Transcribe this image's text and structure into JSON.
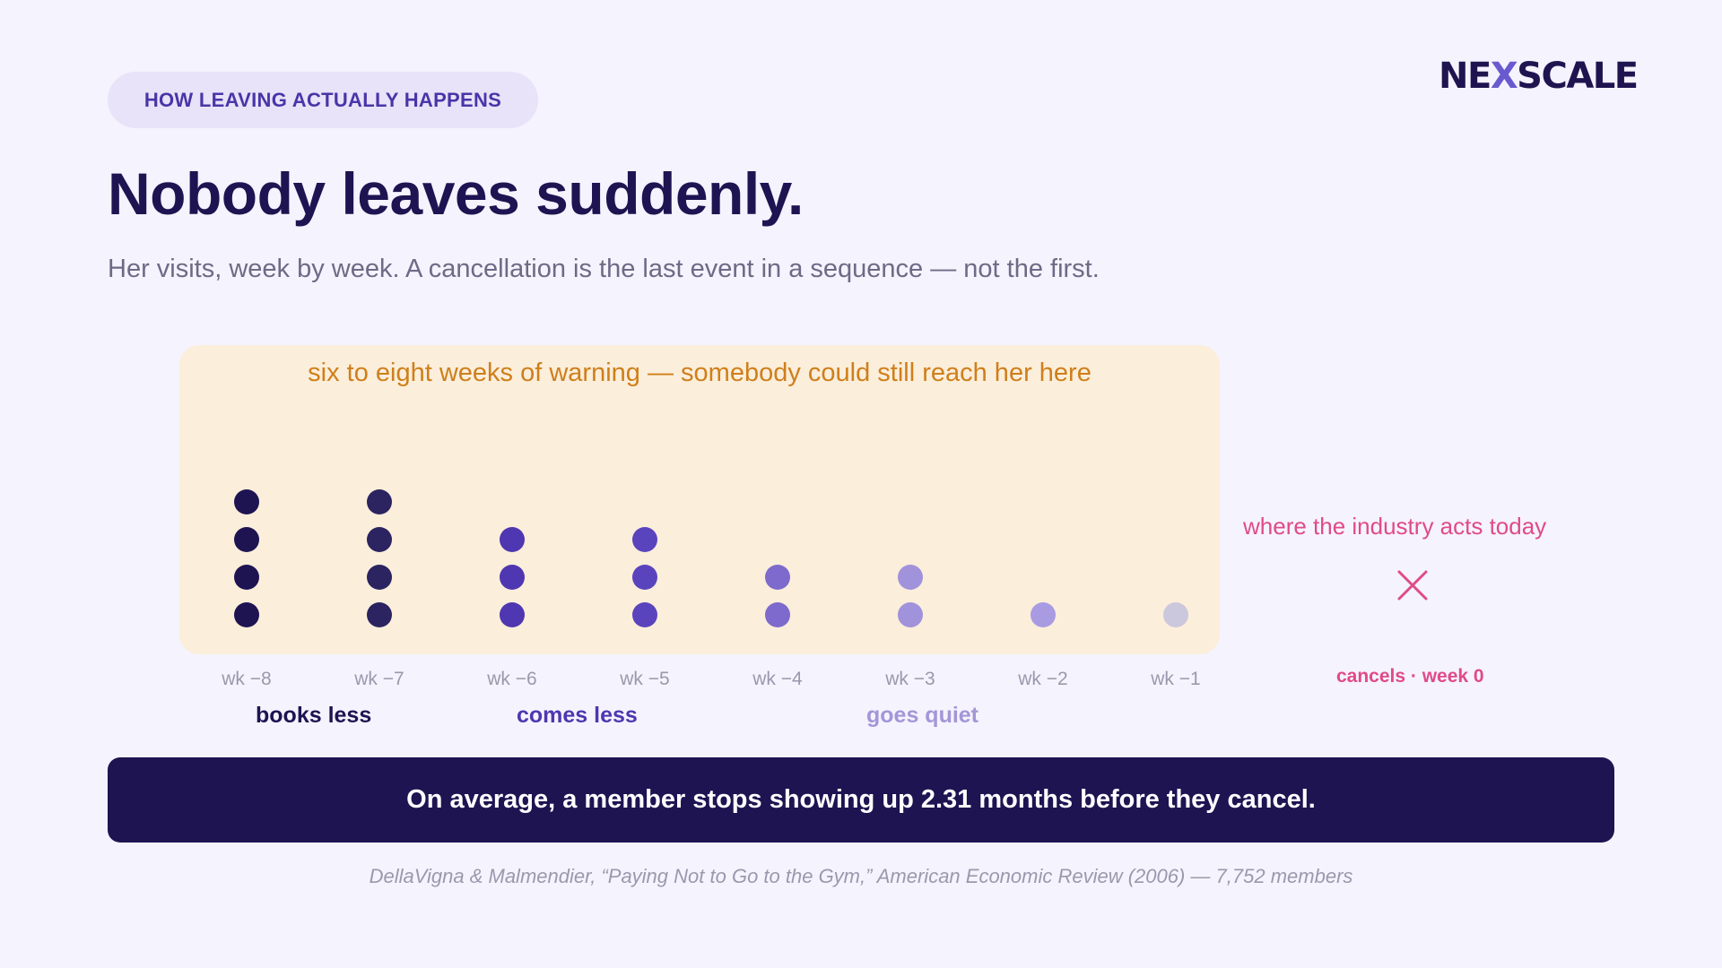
{
  "header": {
    "eyebrow": "HOW LEAVING ACTUALLY HAPPENS",
    "logo_left": "NE",
    "logo_x": "X",
    "logo_right": "SCALE",
    "title": "Nobody leaves suddenly.",
    "subtitle": "Her visits, week by week. A cancellation is the last event in a sequence — not the first."
  },
  "chart_data": {
    "type": "scatter",
    "title": "",
    "xlabel": "",
    "ylabel": "",
    "categories": [
      "wk −8",
      "wk −7",
      "wk −6",
      "wk −5",
      "wk −4",
      "wk −3",
      "wk −2",
      "wk −1"
    ],
    "values": [
      4,
      4,
      3,
      3,
      2,
      2,
      1,
      1
    ],
    "dot_colors": [
      "#1e1452",
      "#2b2460",
      "#4e37b0",
      "#5a44bd",
      "#7e6acc",
      "#a192dc",
      "#a99be2",
      "#cbc7dc"
    ],
    "highlight_region_label": "six to eight weeks of warning — somebody could still reach her here",
    "cancel_marker_label": "where the industry acts today",
    "cancel_axis_label": "cancels · week 0",
    "phases": [
      "books less",
      "comes less",
      "goes quiet"
    ],
    "colors": {
      "warning": "#cf7f1a",
      "cancel": "#e04a8a",
      "axis_label": "#9b98ad"
    }
  },
  "footer": {
    "banner": "On average, a member stops showing up 2.31 months before they cancel.",
    "source": "DellaVigna & Malmendier, “Paying Not to Go to the Gym,” American Economic Review (2006) — 7,752 members"
  }
}
